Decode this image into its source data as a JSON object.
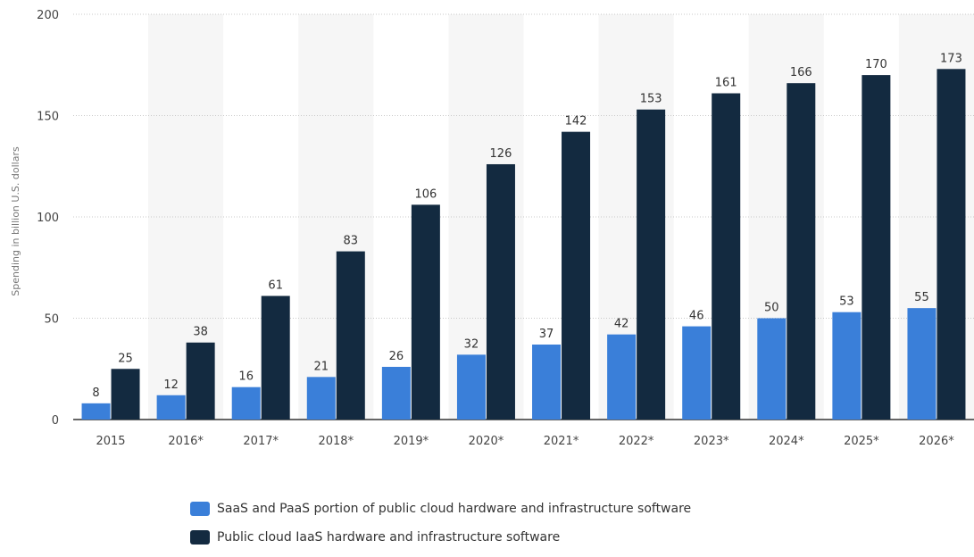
{
  "chart_data": {
    "type": "bar",
    "categories": [
      "2015",
      "2016*",
      "2017*",
      "2018*",
      "2019*",
      "2020*",
      "2021*",
      "2022*",
      "2023*",
      "2024*",
      "2025*",
      "2026*"
    ],
    "series": [
      {
        "name": "SaaS and PaaS portion of public cloud hardware and infrastructure software",
        "color": "#3a7fd9",
        "values": [
          8,
          12,
          16,
          21,
          26,
          32,
          37,
          42,
          46,
          50,
          53,
          55
        ]
      },
      {
        "name": "Public cloud IaaS hardware and infrastructure software",
        "color": "#132a40",
        "values": [
          25,
          38,
          61,
          83,
          106,
          126,
          142,
          153,
          161,
          166,
          170,
          173
        ]
      }
    ],
    "ylabel": "Spending in billion U.S. dollars",
    "ylim": [
      0,
      200
    ],
    "yticks": [
      0,
      50,
      100,
      150,
      200
    ],
    "grid": true,
    "legend_position": "bottom"
  }
}
